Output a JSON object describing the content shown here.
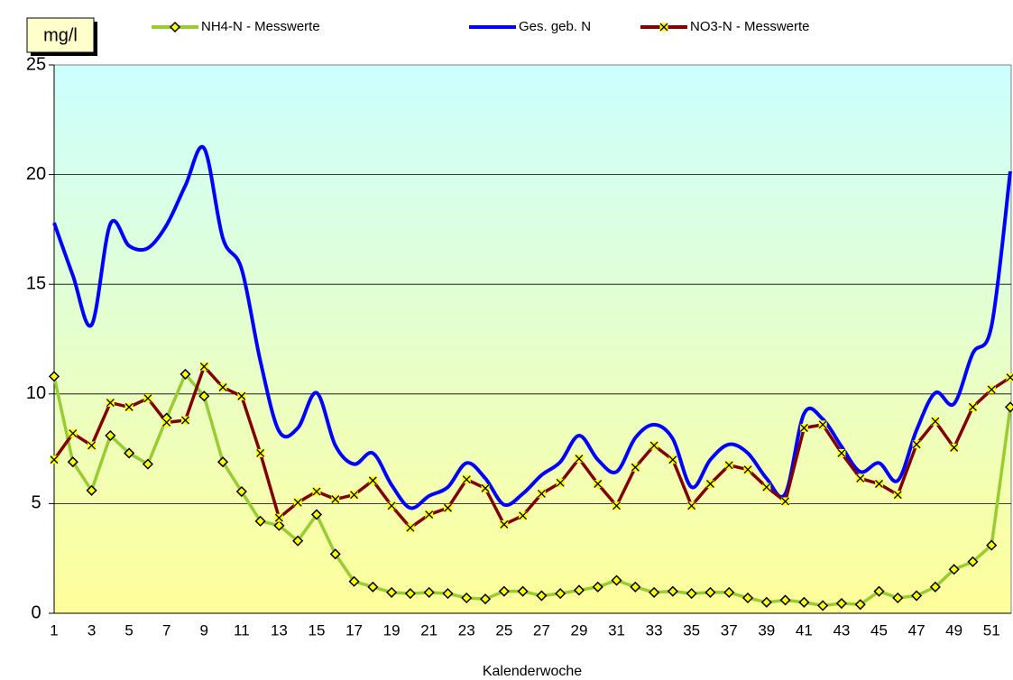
{
  "chart_data": {
    "type": "line",
    "y_label": "mg/l",
    "x_label": "Kalenderwoche",
    "categories": [
      1,
      null,
      3,
      null,
      5,
      null,
      7,
      null,
      9,
      null,
      11,
      null,
      13,
      null,
      15,
      null,
      17,
      null,
      19,
      null,
      21,
      null,
      23,
      null,
      25,
      null,
      27,
      null,
      29,
      null,
      31,
      null,
      33,
      null,
      35,
      null,
      37,
      null,
      39,
      null,
      41,
      null,
      43,
      null,
      45,
      null,
      47,
      null,
      49,
      null,
      51,
      null
    ],
    "ylim": [
      0,
      25
    ],
    "yticks": [
      0,
      5,
      10,
      15,
      20,
      25
    ],
    "grid": true,
    "series": [
      {
        "name": "NH4-N - Messwerte",
        "color": "#99cc33",
        "marker": "diamond",
        "values": [
          10.8,
          6.9,
          5.6,
          8.1,
          7.3,
          6.8,
          8.9,
          10.9,
          9.9,
          6.9,
          5.55,
          4.2,
          4.0,
          3.3,
          4.5,
          2.7,
          1.45,
          1.2,
          0.95,
          0.9,
          0.95,
          0.9,
          0.7,
          0.65,
          1.0,
          1.0,
          0.8,
          0.9,
          1.05,
          1.2,
          1.5,
          1.2,
          0.95,
          1.0,
          0.9,
          0.95,
          0.95,
          0.7,
          0.5,
          0.6,
          0.5,
          0.35,
          0.45,
          0.4,
          1.0,
          0.7,
          0.8,
          1.2,
          2.0,
          2.35,
          3.1,
          9.4
        ]
      },
      {
        "name": "Ges. geb. N",
        "color": "#0000ff",
        "smooth": true,
        "values": [
          17.8,
          15.4,
          13.15,
          17.75,
          16.75,
          16.65,
          17.7,
          19.5,
          21.2,
          17.1,
          15.7,
          11.5,
          8.3,
          8.45,
          10.05,
          7.65,
          6.8,
          7.3,
          5.85,
          4.8,
          5.35,
          5.75,
          6.85,
          6.15,
          4.95,
          5.45,
          6.3,
          6.9,
          8.1,
          7.0,
          6.45,
          8.0,
          8.6,
          7.95,
          5.75,
          7.0,
          7.7,
          7.3,
          6.15,
          5.45,
          9.1,
          8.85,
          7.6,
          6.45,
          6.85,
          6.05,
          8.35,
          10.05,
          9.55,
          11.85,
          13.1,
          20.15
        ]
      },
      {
        "name": "NO3-N - Messwerte",
        "color": "#800000",
        "marker": "x",
        "values": [
          7.0,
          8.2,
          7.65,
          9.6,
          9.4,
          9.8,
          8.7,
          8.8,
          11.25,
          10.3,
          9.9,
          7.3,
          4.35,
          5.05,
          5.55,
          5.2,
          5.4,
          6.05,
          4.9,
          3.9,
          4.5,
          4.8,
          6.1,
          5.7,
          4.05,
          4.45,
          5.45,
          5.95,
          7.05,
          5.9,
          4.9,
          6.65,
          7.65,
          7.0,
          4.9,
          5.9,
          6.75,
          6.55,
          5.75,
          5.1,
          8.45,
          8.6,
          7.3,
          6.15,
          5.9,
          5.4,
          7.7,
          8.75,
          7.55,
          9.4,
          10.2,
          10.75
        ]
      }
    ]
  }
}
